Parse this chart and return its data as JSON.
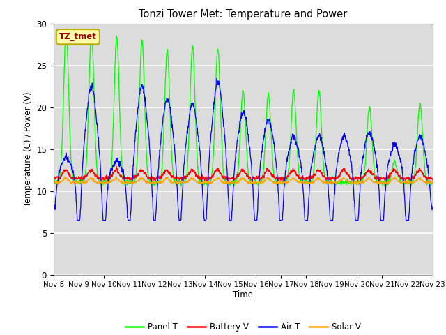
{
  "title": "Tonzi Tower Met: Temperature and Power",
  "ylabel": "Temperature (C) / Power (V)",
  "xlabel": "Time",
  "annotation": "TZ_tmet",
  "ylim": [
    0,
    30
  ],
  "plot_bg_color": "#dcdcdc",
  "fig_bg_color": "#ffffff",
  "grid_color": "#ffffff",
  "colors": {
    "panel_t": "#00ff00",
    "battery_v": "#ff0000",
    "air_t": "#0000ff",
    "solar_v": "#ffa500"
  },
  "legend": [
    "Panel T",
    "Battery V",
    "Air T",
    "Solar V"
  ],
  "x_ticks": [
    "Nov 8",
    "Nov 9",
    "Nov 10",
    "Nov 11",
    "Nov 12",
    "Nov 13",
    "Nov 14",
    "Nov 15",
    "Nov 16",
    "Nov 17",
    "Nov 18",
    "Nov 19",
    "Nov 20",
    "Nov 21",
    "Nov 22",
    "Nov 23"
  ],
  "days": 15,
  "pts_per_day": 96
}
